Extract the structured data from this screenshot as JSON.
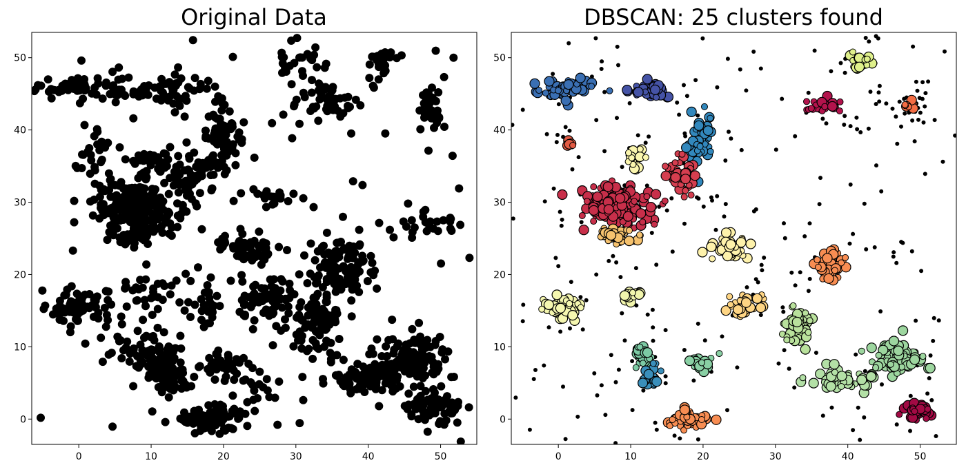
{
  "chart_data": [
    {
      "type": "scatter",
      "title": "Original Data",
      "xlabel": "",
      "ylabel": "",
      "xlim": [
        -6.5,
        55
      ],
      "ylim": [
        -3.5,
        53.5
      ],
      "xticks": [
        0,
        10,
        20,
        30,
        40,
        50
      ],
      "yticks": [
        0,
        10,
        20,
        30,
        40,
        50
      ],
      "grid": false,
      "marker_color": "#000000",
      "clusters": [
        {
          "cx": 0,
          "cy": 46,
          "sx": 3.5,
          "sy": 0.8,
          "n": 70
        },
        {
          "cx": 12,
          "cy": 45.5,
          "sx": 2.8,
          "sy": 1.0,
          "n": 55
        },
        {
          "cx": 20,
          "cy": 39,
          "sx": 1.2,
          "sy": 2.0,
          "n": 60
        },
        {
          "cx": 16,
          "cy": 33.5,
          "sx": 2.0,
          "sy": 1.6,
          "n": 60
        },
        {
          "cx": 8,
          "cy": 29.5,
          "sx": 3.0,
          "sy": 1.8,
          "n": 200
        },
        {
          "cx": 8,
          "cy": 25.5,
          "sx": 1.8,
          "sy": 0.9,
          "n": 50
        },
        {
          "cx": 10,
          "cy": 36,
          "sx": 1.5,
          "sy": 1.2,
          "n": 30
        },
        {
          "cx": 2,
          "cy": 37,
          "sx": 1.8,
          "sy": 1.8,
          "n": 25
        },
        {
          "cx": 26,
          "cy": 31,
          "sx": 2.2,
          "sy": 0.8,
          "n": 20
        },
        {
          "cx": 23.5,
          "cy": 23.5,
          "sx": 2.0,
          "sy": 1.0,
          "n": 60
        },
        {
          "cx": 36.5,
          "cy": 21,
          "sx": 2.5,
          "sy": 2.2,
          "n": 100
        },
        {
          "cx": 26,
          "cy": 16,
          "sx": 2.0,
          "sy": 1.8,
          "n": 70
        },
        {
          "cx": 33,
          "cy": 13,
          "sx": 1.6,
          "sy": 2.4,
          "n": 90
        },
        {
          "cx": 0,
          "cy": 15.5,
          "sx": 2.5,
          "sy": 1.2,
          "n": 70
        },
        {
          "cx": 10,
          "cy": 17.5,
          "sx": 2.5,
          "sy": 1.2,
          "n": 30
        },
        {
          "cx": 17.5,
          "cy": 15.5,
          "sx": 1.2,
          "sy": 1.5,
          "n": 25
        },
        {
          "cx": 11,
          "cy": 8.5,
          "sx": 1.8,
          "sy": 2.0,
          "n": 80
        },
        {
          "cx": 13,
          "cy": 5.5,
          "sx": 1.2,
          "sy": 1.0,
          "n": 40
        },
        {
          "cx": 20,
          "cy": 7.5,
          "sx": 1.5,
          "sy": 1.0,
          "n": 35
        },
        {
          "cx": 18,
          "cy": 0,
          "sx": 2.5,
          "sy": 0.9,
          "n": 80
        },
        {
          "cx": 40,
          "cy": 5.5,
          "sx": 2.5,
          "sy": 1.0,
          "n": 80
        },
        {
          "cx": 46,
          "cy": 8.5,
          "sx": 2.5,
          "sy": 1.6,
          "n": 120
        },
        {
          "cx": 49,
          "cy": 1.5,
          "sx": 2.0,
          "sy": 1.0,
          "n": 70
        },
        {
          "cx": 35,
          "cy": 44,
          "sx": 2.8,
          "sy": 1.3,
          "n": 50
        },
        {
          "cx": 31,
          "cy": 48.5,
          "sx": 2.0,
          "sy": 1.8,
          "n": 25
        },
        {
          "cx": 42,
          "cy": 49.5,
          "sx": 1.0,
          "sy": 0.9,
          "n": 30
        },
        {
          "cx": 48.5,
          "cy": 43,
          "sx": 0.8,
          "sy": 2.2,
          "n": 35
        },
        {
          "cx": 49,
          "cy": 27,
          "sx": 1.8,
          "sy": 1.8,
          "n": 25
        },
        {
          "cx": 24,
          "cy": 5,
          "sx": 2.5,
          "sy": 2.0,
          "n": 25
        },
        {
          "cx": 6,
          "cy": 10,
          "sx": 3.0,
          "sy": 2.5,
          "n": 25
        }
      ],
      "noise_points": 80
    },
    {
      "type": "scatter",
      "title": "DBSCAN: 25 clusters found",
      "xlabel": "",
      "ylabel": "",
      "xlim": [
        -6.5,
        55
      ],
      "ylim": [
        -3.5,
        53.5
      ],
      "xticks": [
        0,
        10,
        20,
        30,
        40,
        50
      ],
      "yticks": [
        0,
        10,
        20,
        30,
        40,
        50
      ],
      "grid": false,
      "noise_color": "#000000",
      "noise_points": 320,
      "clusters": [
        {
          "cx": 0.5,
          "cy": 45.8,
          "sx": 2.0,
          "sy": 0.6,
          "n": 50,
          "color": "#3a6fb3"
        },
        {
          "cx": 12.8,
          "cy": 45.3,
          "sx": 1.3,
          "sy": 0.7,
          "n": 40,
          "color": "#4553a6"
        },
        {
          "cx": 19.5,
          "cy": 39,
          "sx": 0.8,
          "sy": 1.6,
          "n": 55,
          "color": "#3288bd"
        },
        {
          "cx": 17,
          "cy": 33.5,
          "sx": 1.1,
          "sy": 1.3,
          "n": 45,
          "color": "#d53e4f"
        },
        {
          "cx": 8,
          "cy": 29.5,
          "sx": 2.6,
          "sy": 1.3,
          "n": 170,
          "color": "#c82f4a"
        },
        {
          "cx": 8,
          "cy": 25.5,
          "sx": 1.4,
          "sy": 0.6,
          "n": 35,
          "color": "#f6c26e"
        },
        {
          "cx": 10.5,
          "cy": 36.2,
          "sx": 0.6,
          "sy": 0.8,
          "n": 20,
          "color": "#fbf6ae"
        },
        {
          "cx": 1.5,
          "cy": 38.2,
          "sx": 0.3,
          "sy": 0.3,
          "n": 5,
          "color": "#e35b44"
        },
        {
          "cx": 36.8,
          "cy": 43.5,
          "sx": 1.0,
          "sy": 0.6,
          "n": 25,
          "color": "#b3134c"
        },
        {
          "cx": 48.5,
          "cy": 43.3,
          "sx": 0.3,
          "sy": 0.3,
          "n": 5,
          "color": "#f46d43"
        },
        {
          "cx": 41.8,
          "cy": 49.2,
          "sx": 0.6,
          "sy": 0.7,
          "n": 25,
          "color": "#dff08b"
        },
        {
          "cx": 23.8,
          "cy": 23.5,
          "sx": 1.5,
          "sy": 0.8,
          "n": 45,
          "color": "#fef2ab"
        },
        {
          "cx": 37.5,
          "cy": 21.2,
          "sx": 1.2,
          "sy": 1.1,
          "n": 45,
          "color": "#f88d52"
        },
        {
          "cx": 26,
          "cy": 15.8,
          "sx": 1.2,
          "sy": 0.8,
          "n": 35,
          "color": "#fed584"
        },
        {
          "cx": 33.2,
          "cy": 12.8,
          "sx": 1.0,
          "sy": 1.5,
          "n": 55,
          "color": "#b9e19c"
        },
        {
          "cx": 0.5,
          "cy": 15.5,
          "sx": 1.5,
          "sy": 0.8,
          "n": 45,
          "color": "#f5f7b0"
        },
        {
          "cx": 9.8,
          "cy": 17.2,
          "sx": 0.8,
          "sy": 0.4,
          "n": 15,
          "color": "#f2f6ad"
        },
        {
          "cx": 11.5,
          "cy": 9,
          "sx": 0.8,
          "sy": 1.0,
          "n": 30,
          "color": "#7ccaa4"
        },
        {
          "cx": 13,
          "cy": 5.7,
          "sx": 0.6,
          "sy": 0.6,
          "n": 20,
          "color": "#3a8fbb"
        },
        {
          "cx": 20,
          "cy": 7.5,
          "sx": 0.9,
          "sy": 0.5,
          "n": 20,
          "color": "#89d0a4"
        },
        {
          "cx": 17.8,
          "cy": 0,
          "sx": 1.5,
          "sy": 0.6,
          "n": 45,
          "color": "#f88d52"
        },
        {
          "cx": 39.5,
          "cy": 5.5,
          "sx": 2.5,
          "sy": 0.8,
          "n": 55,
          "color": "#b3e0a6"
        },
        {
          "cx": 46.5,
          "cy": 8.5,
          "sx": 1.8,
          "sy": 1.1,
          "n": 70,
          "color": "#9dd69f"
        },
        {
          "cx": 49,
          "cy": 1.2,
          "sx": 1.2,
          "sy": 0.6,
          "n": 40,
          "color": "#a20a44"
        },
        {
          "cx": 48.2,
          "cy": 43.3,
          "sx": 0.25,
          "sy": 0.25,
          "n": 4,
          "color": "#f46d43"
        }
      ]
    }
  ]
}
